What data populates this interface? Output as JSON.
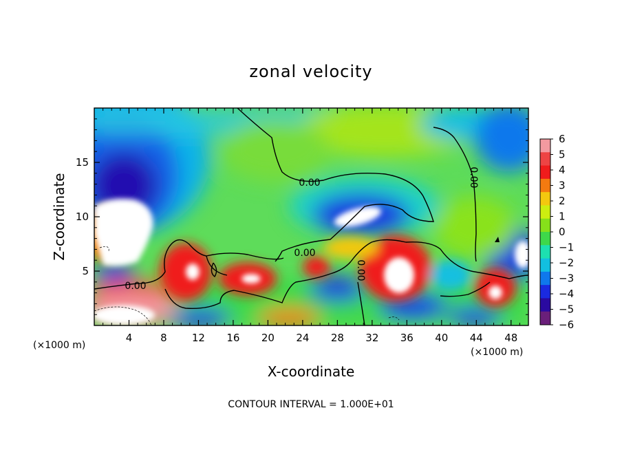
{
  "chart_data": {
    "type": "heatmap",
    "title": "zonal velocity",
    "xlabel": "X-coordinate",
    "ylabel": "Z-coordinate",
    "x_unit": "(×1000 m)",
    "y_unit_label": "(×1000 m)",
    "xlim": [
      0,
      50
    ],
    "ylim": [
      0,
      20
    ],
    "x_ticks": [
      4,
      8,
      12,
      16,
      20,
      24,
      28,
      32,
      36,
      40,
      44,
      48
    ],
    "y_ticks": [
      5,
      10,
      15
    ],
    "colorbar": {
      "ticks": [
        6,
        5,
        4,
        3,
        2,
        1,
        0,
        -1,
        -2,
        -3,
        -4,
        -5,
        -6
      ],
      "min": -6,
      "max": 6,
      "colors": [
        "#6a1f7a",
        "#2a0aa0",
        "#1a2ae0",
        "#0f78ec",
        "#12bfe0",
        "#1de0b0",
        "#3ed84a",
        "#86e01a",
        "#cdee10",
        "#f3c80f",
        "#f47a10",
        "#f01c1c",
        "#ee4444",
        "#f39aa0"
      ]
    },
    "contour_label": "0.00",
    "footnote": "CONTOUR INTERVAL = 1.000E+01"
  }
}
